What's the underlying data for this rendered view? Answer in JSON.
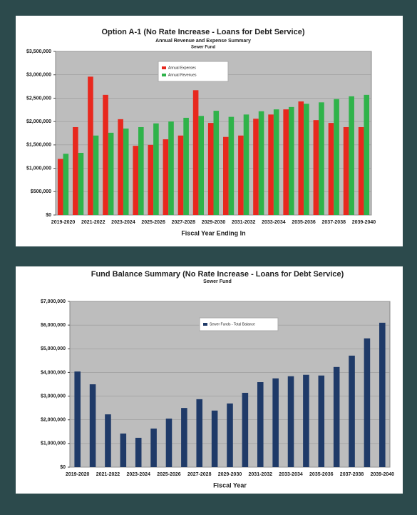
{
  "chart_data": [
    {
      "type": "bar",
      "title": "Option A-1 (No Rate Increase - Loans for Debt Service)",
      "subtitle": "Annual Revenue and Expense Summary",
      "subtitle2": "Sewer Fund",
      "xlabel": "Fiscal Year Ending In",
      "categories": [
        "2019-2020",
        null,
        "2021-2022",
        null,
        "2023-2024",
        null,
        "2025-2026",
        null,
        "2027-2028",
        null,
        "2029-2030",
        null,
        "2031-2032",
        null,
        "2033-2034",
        null,
        "2035-2036",
        null,
        "2037-2038",
        null,
        "2039-2040"
      ],
      "series": [
        {
          "name": "Annual Expenses",
          "color": "#e8281e",
          "values": [
            1200000,
            1880000,
            2960000,
            2570000,
            2050000,
            1480000,
            1500000,
            1620000,
            1700000,
            2670000,
            1970000,
            1670000,
            1700000,
            2060000,
            2150000,
            2260000,
            2430000,
            2030000,
            1970000,
            1880000,
            1880000
          ]
        },
        {
          "name": "Annual Revenues",
          "color": "#2fb34a",
          "values": [
            1310000,
            1330000,
            1700000,
            1760000,
            1850000,
            1880000,
            1960000,
            2000000,
            2080000,
            2120000,
            2230000,
            2100000,
            2150000,
            2220000,
            2260000,
            2310000,
            2380000,
            2410000,
            2480000,
            2540000,
            2570000
          ]
        }
      ],
      "ylim": [
        0,
        3500000
      ],
      "yticks": [
        {
          "value": 0,
          "label": "$0"
        },
        {
          "value": 500000,
          "label": "$500,000"
        },
        {
          "value": 1000000,
          "label": "$1,000,000"
        },
        {
          "value": 1500000,
          "label": "$1,500,000"
        },
        {
          "value": 2000000,
          "label": "$2,000,000"
        },
        {
          "value": 2500000,
          "label": "$2,500,000"
        },
        {
          "value": 3000000,
          "label": "$3,000,000"
        },
        {
          "value": 3500000,
          "label": "$3,500,000"
        }
      ],
      "grid": true
    },
    {
      "type": "bar",
      "title": "Fund Balance Summary (No Rate Increase - Loans for Debt Service)",
      "subtitle": "Sewer Fund",
      "xlabel": "Fiscal Year",
      "categories": [
        "2019-2020",
        null,
        "2021-2022",
        null,
        "2023-2024",
        null,
        "2025-2026",
        null,
        "2027-2028",
        null,
        "2029-2030",
        null,
        "2031-2032",
        null,
        "2033-2034",
        null,
        "2035-2036",
        null,
        "2037-2038",
        null,
        "2039-2040"
      ],
      "series": [
        {
          "name": "Sewer Funds - Total Balance",
          "color": "#1f3a68",
          "values": [
            4040000,
            3500000,
            2230000,
            1420000,
            1240000,
            1630000,
            2050000,
            2500000,
            2870000,
            2390000,
            2690000,
            3140000,
            3590000,
            3750000,
            3840000,
            3900000,
            3870000,
            4230000,
            4710000,
            5440000,
            6100000
          ]
        }
      ],
      "ylim": [
        0,
        7000000
      ],
      "yticks": [
        {
          "value": 0,
          "label": "$0"
        },
        {
          "value": 1000000,
          "label": "$1,000,000"
        },
        {
          "value": 2000000,
          "label": "$2,000,000"
        },
        {
          "value": 3000000,
          "label": "$3,000,000"
        },
        {
          "value": 4000000,
          "label": "$4,000,000"
        },
        {
          "value": 5000000,
          "label": "$5,000,000"
        },
        {
          "value": 6000000,
          "label": "$6,000,000"
        },
        {
          "value": 7000000,
          "label": "$7,000,000"
        }
      ],
      "grid": true
    }
  ]
}
